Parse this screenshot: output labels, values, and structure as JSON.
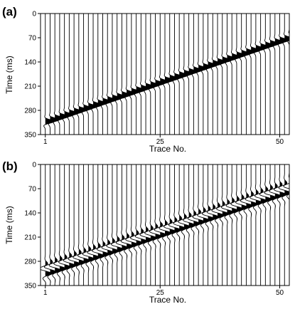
{
  "chart_data": [
    {
      "type": "line",
      "panel_label": "(a)",
      "xlabel": "Trace No.",
      "ylabel": "Time (ms)",
      "x_ticks": [
        1,
        25,
        50
      ],
      "y_ticks": [
        0,
        70,
        140,
        210,
        280,
        350
      ],
      "xlim": [
        0,
        52
      ],
      "ylim": [
        350,
        0
      ],
      "traces": {
        "first": 1,
        "last": 52
      },
      "event": {
        "x": [
          1,
          52
        ],
        "y": [
          312,
          68
        ],
        "wavelet": "single-lobe"
      },
      "colors": {
        "trace": "#000000",
        "fill": "#000000"
      }
    },
    {
      "type": "line",
      "panel_label": "(b)",
      "xlabel": "Trace No.",
      "ylabel": "Time (ms)",
      "x_ticks": [
        1,
        25,
        50
      ],
      "y_ticks": [
        0,
        70,
        140,
        210,
        280,
        350
      ],
      "xlim": [
        0,
        52
      ],
      "ylim": [
        350,
        0
      ],
      "traces": {
        "first": 1,
        "last": 52
      },
      "event": {
        "x": [
          1,
          52
        ],
        "y": [
          308,
          70
        ],
        "wavelet": "multi-lobe"
      },
      "colors": {
        "trace": "#000000",
        "fill": "#000000"
      }
    }
  ]
}
